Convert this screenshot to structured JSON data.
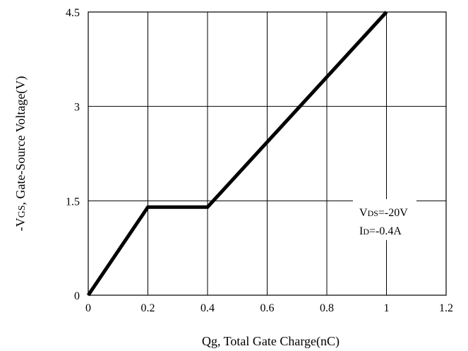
{
  "chart_data": {
    "type": "line",
    "xlabel": "Qg, Total Gate Charge(nC)",
    "ylabel": {
      "prefix": "-V",
      "subscript": "GS",
      "suffix": ", Gate-Source Voltage(V)"
    },
    "xlim": [
      0,
      1.2
    ],
    "ylim": [
      0,
      4.5
    ],
    "x_ticks": [
      "0",
      "0.2",
      "0.4",
      "0.6",
      "0.8",
      "1",
      "1.2"
    ],
    "y_ticks": [
      "0",
      "1.5",
      "3",
      "4.5"
    ],
    "grid": true,
    "series": [
      {
        "x": [
          0,
          0.2,
          0.4,
          1.0
        ],
        "y": [
          0,
          1.4,
          1.4,
          4.5
        ]
      }
    ],
    "annotations": [
      {
        "main": "V",
        "sub": "DS",
        "rest": "=-20V"
      },
      {
        "main": "I",
        "sub": "D",
        "rest": "=-0.4A"
      }
    ]
  }
}
